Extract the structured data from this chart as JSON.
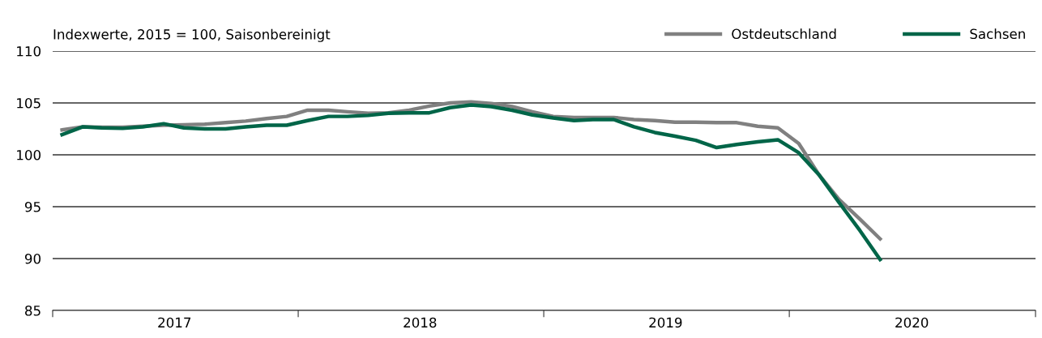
{
  "chart_data": {
    "type": "line",
    "title": "Indexwerte, 2015 = 100, Saisonbereinigt",
    "x": [
      "2017-01-15",
      "2017-02-15",
      "2017-03-15",
      "2017-04-15",
      "2017-05-15",
      "2017-06-15",
      "2017-07-15",
      "2017-08-15",
      "2017-09-15",
      "2017-10-15",
      "2017-11-15",
      "2017-12-15",
      "2018-01-15",
      "2018-02-15",
      "2018-03-15",
      "2018-04-15",
      "2018-05-15",
      "2018-06-15",
      "2018-07-15",
      "2018-08-15",
      "2018-09-15",
      "2018-10-15",
      "2018-11-15",
      "2018-12-15",
      "2019-01-15",
      "2019-02-15",
      "2019-03-15",
      "2019-04-15",
      "2019-05-15",
      "2019-06-15",
      "2019-07-15",
      "2019-08-15",
      "2019-09-15",
      "2019-10-15",
      "2019-11-15",
      "2019-12-15",
      "2020-01-15",
      "2020-02-15",
      "2020-03-15",
      "2020-04-15",
      "2020-05-15"
    ],
    "series": [
      {
        "name": "Ostdeutschland",
        "color": "#808080",
        "values": [
          102.4,
          102.7,
          102.65,
          102.65,
          102.75,
          102.85,
          102.9,
          102.95,
          103.1,
          103.25,
          103.5,
          103.7,
          104.3,
          104.3,
          104.15,
          104.0,
          104.05,
          104.3,
          104.7,
          105.0,
          105.1,
          104.95,
          104.65,
          104.15,
          103.7,
          103.6,
          103.6,
          103.6,
          103.4,
          103.3,
          103.15,
          103.15,
          103.1,
          103.1,
          102.75,
          102.6,
          101.1,
          98.0,
          95.7,
          93.8,
          91.9
        ]
      },
      {
        "name": "Sachsen",
        "color": "#006548",
        "values": [
          101.95,
          102.7,
          102.6,
          102.55,
          102.7,
          103.0,
          102.6,
          102.5,
          102.5,
          102.7,
          102.85,
          102.85,
          103.3,
          103.7,
          103.7,
          103.8,
          104.0,
          104.05,
          104.05,
          104.55,
          104.8,
          104.65,
          104.3,
          103.85,
          103.55,
          103.3,
          103.4,
          103.4,
          102.7,
          102.15,
          101.8,
          101.4,
          100.7,
          101.0,
          101.25,
          101.45,
          100.2,
          98.0,
          95.4,
          92.7,
          89.9
        ]
      }
    ],
    "xlim": [
      "2017-01-01",
      "2021-01-01"
    ],
    "xticks": [
      {
        "value": "2017-01-01",
        "label": null
      },
      {
        "value": "2017-07-01",
        "label": "2017"
      },
      {
        "value": "2018-01-01",
        "label": null
      },
      {
        "value": "2018-07-01",
        "label": "2018"
      },
      {
        "value": "2019-01-01",
        "label": null
      },
      {
        "value": "2019-07-01",
        "label": "2019"
      },
      {
        "value": "2020-01-01",
        "label": null
      },
      {
        "value": "2020-07-01",
        "label": "2020"
      },
      {
        "value": "2021-01-01",
        "label": null
      }
    ],
    "ylim": [
      85,
      110
    ],
    "yticks": [
      85,
      90,
      95,
      100,
      105,
      110
    ],
    "grid": "y",
    "legend": "top right",
    "marker": "none",
    "line_style": "solid"
  }
}
